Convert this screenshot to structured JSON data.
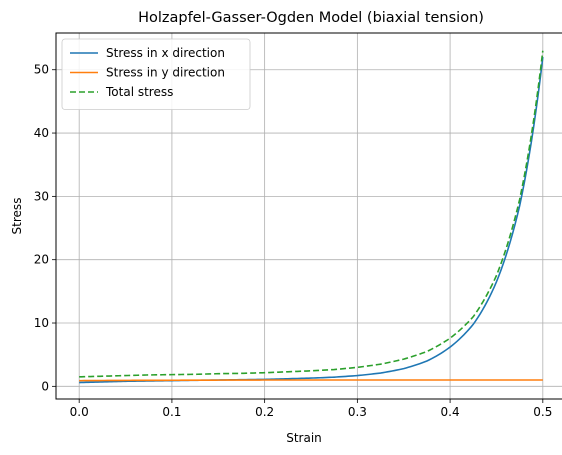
{
  "chart_data": {
    "type": "line",
    "title": "Holzapfel-Gasser-Ogden Model (biaxial tension)",
    "xlabel": "Strain",
    "ylabel": "Stress",
    "xlim": [
      -0.025,
      0.525
    ],
    "ylim": [
      -2.0,
      55.8
    ],
    "xticks": [
      0.0,
      0.1,
      0.2,
      0.3,
      0.4,
      0.5
    ],
    "xtick_labels": [
      "0.0",
      "0.1",
      "0.2",
      "0.3",
      "0.4",
      "0.5"
    ],
    "yticks": [
      0,
      10,
      20,
      30,
      40,
      50
    ],
    "ytick_labels": [
      "0",
      "10",
      "20",
      "30",
      "40",
      "50"
    ],
    "grid": true,
    "legend_position": "upper-left",
    "x": [
      0.0,
      0.025,
      0.05,
      0.075,
      0.1,
      0.125,
      0.15,
      0.175,
      0.2,
      0.225,
      0.25,
      0.275,
      0.3,
      0.325,
      0.35,
      0.375,
      0.4,
      0.425,
      0.45,
      0.475,
      0.5
    ],
    "series": [
      {
        "name": "Stress in x direction",
        "color": "#1f77b4",
        "dash": "solid",
        "values": [
          0.6,
          0.7,
          0.8,
          0.85,
          0.9,
          0.95,
          1.0,
          1.05,
          1.1,
          1.2,
          1.3,
          1.45,
          1.7,
          2.1,
          2.8,
          4.0,
          6.2,
          9.8,
          16.5,
          28.5,
          52.0
        ]
      },
      {
        "name": "Stress in y direction",
        "color": "#ff7f0e",
        "dash": "solid",
        "values": [
          0.9,
          0.92,
          0.94,
          0.95,
          0.96,
          0.97,
          0.98,
          0.99,
          1.0,
          1.0,
          1.0,
          1.0,
          1.0,
          1.0,
          1.0,
          1.0,
          1.0,
          1.0,
          1.0,
          1.0,
          1.0
        ]
      },
      {
        "name": "Total stress",
        "color": "#2ca02c",
        "dash": "dashed",
        "values": [
          1.5,
          1.6,
          1.7,
          1.8,
          1.85,
          1.9,
          2.0,
          2.05,
          2.15,
          2.3,
          2.45,
          2.65,
          3.0,
          3.5,
          4.3,
          5.5,
          7.6,
          11.0,
          17.5,
          29.5,
          53.0
        ]
      }
    ]
  }
}
